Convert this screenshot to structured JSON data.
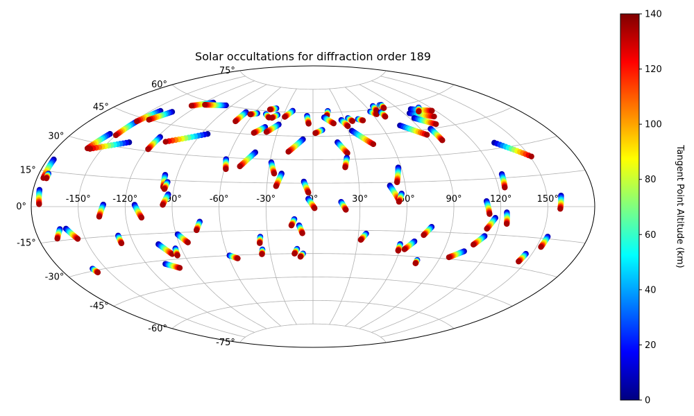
{
  "chart_data": {
    "type": "scatter",
    "projection": "aitoff",
    "title": "Solar occultations for diffraction order 189",
    "grid": true,
    "xlim": [
      -180,
      180
    ],
    "ylim": [
      -90,
      90
    ],
    "x_ticks": [
      -150,
      -120,
      -90,
      -60,
      -30,
      0,
      30,
      60,
      90,
      120,
      150
    ],
    "y_ticks": [
      -75,
      -60,
      -45,
      -30,
      -15,
      0,
      15,
      30,
      45,
      60,
      75
    ],
    "x_tick_labels": [
      "-150°",
      "-120°",
      "-90°",
      "-60°",
      "-30°",
      "0°",
      "30°",
      "60°",
      "90°",
      "120°",
      "150°"
    ],
    "y_tick_labels": [
      "-75°",
      "-60°",
      "-45°",
      "-30°",
      "-15°",
      "0°",
      "15°",
      "30°",
      "45°",
      "60°",
      "75°"
    ],
    "colorbar": {
      "label": "Tangent Point Altitude (km)",
      "colormap": "jet",
      "range": [
        0,
        140
      ],
      "ticks": [
        0,
        20,
        40,
        60,
        80,
        100,
        120,
        140
      ]
    },
    "series": [
      {
        "lon_start": -176,
        "lat_start": 20,
        "lon_end": -176,
        "lat_end": 12
      },
      {
        "lon_start": -176,
        "lat_start": 7,
        "lon_end": -175,
        "lat_end": 1
      },
      {
        "lon_start": -155,
        "lat_start": 35,
        "lon_end": -160,
        "lat_end": 27
      },
      {
        "lon_start": -148,
        "lat_start": 43,
        "lon_end": -150,
        "lat_end": 35
      },
      {
        "lon_start": -143,
        "lat_start": 50,
        "lon_end": -148,
        "lat_end": 43
      },
      {
        "lon_start": -136,
        "lat_start": 33,
        "lon_end": -158,
        "lat_end": 27
      },
      {
        "lon_start": -133,
        "lat_start": 51,
        "lon_end": -141,
        "lat_end": 45
      },
      {
        "lon_start": -112,
        "lat_start": 60,
        "lon_end": -126,
        "lat_end": 56
      },
      {
        "lon_start": -96,
        "lat_start": 60,
        "lon_end": -116,
        "lat_end": 58
      },
      {
        "lon_start": -118,
        "lat_start": 38,
        "lon_end": -119,
        "lat_end": 31
      },
      {
        "lon_start": -85,
        "lat_start": 43,
        "lon_end": -111,
        "lat_end": 36
      },
      {
        "lon_start": -98,
        "lat_start": 18,
        "lon_end": -97,
        "lat_end": 11
      },
      {
        "lon_start": -93,
        "lat_start": 7,
        "lon_end": -96,
        "lat_end": 1
      },
      {
        "lon_start": -134,
        "lat_start": 1,
        "lon_end": -137,
        "lat_end": -5
      },
      {
        "lon_start": -164,
        "lat_start": -10,
        "lon_end": -168,
        "lat_end": -14
      },
      {
        "lon_start": -160,
        "lat_start": -10,
        "lon_end": -155,
        "lat_end": -15
      },
      {
        "lon_start": -114,
        "lat_start": 1,
        "lon_end": -110,
        "lat_end": -6
      },
      {
        "lon_start": -128,
        "lat_start": -15,
        "lon_end": -128,
        "lat_end": -19
      },
      {
        "lon_start": -159,
        "lat_start": -29,
        "lon_end": -158,
        "lat_end": -31
      },
      {
        "lon_start": -104,
        "lat_start": -21,
        "lon_end": -98,
        "lat_end": -27
      },
      {
        "lon_start": -94,
        "lat_start": -24,
        "lon_end": -95,
        "lat_end": -28
      },
      {
        "lon_start": -107,
        "lat_start": -32,
        "lon_end": -99,
        "lat_end": -35
      },
      {
        "lon_start": -89,
        "lat_start": -16,
        "lon_end": -84,
        "lat_end": -21
      },
      {
        "lon_start": -73,
        "lat_start": -9,
        "lon_end": -76,
        "lat_end": -14
      },
      {
        "lon_start": -69,
        "lat_start": 58,
        "lon_end": -71,
        "lat_end": 52
      },
      {
        "lon_start": -61,
        "lat_start": 29,
        "lon_end": -59,
        "lat_end": 23
      },
      {
        "lon_start": -42,
        "lat_start": 34,
        "lon_end": -50,
        "lat_end": 25
      },
      {
        "lon_start": -42,
        "lat_start": 50,
        "lon_end": -49,
        "lat_end": 46
      },
      {
        "lon_start": -31,
        "lat_start": 52,
        "lon_end": -39,
        "lat_end": 47
      },
      {
        "lon_start": -57,
        "lat_start": 58,
        "lon_end": -63,
        "lat_end": 57
      },
      {
        "lon_start": -48,
        "lat_start": 58,
        "lon_end": -43,
        "lat_end": 56
      },
      {
        "lon_start": -36,
        "lat_start": 58,
        "lon_end": -40,
        "lat_end": 56
      },
      {
        "lon_start": -41,
        "lat_start": 62,
        "lon_end": -47,
        "lat_end": 61
      },
      {
        "lon_start": -22,
        "lat_start": 61,
        "lon_end": -28,
        "lat_end": 57
      },
      {
        "lon_start": -29,
        "lat_start": 28,
        "lon_end": -26,
        "lat_end": 21
      },
      {
        "lon_start": -21,
        "lat_start": 21,
        "lon_end": -24,
        "lat_end": 13
      },
      {
        "lon_start": -8,
        "lat_start": 43,
        "lon_end": -18,
        "lat_end": 35
      },
      {
        "lon_start": -6,
        "lat_start": 58,
        "lon_end": -4,
        "lat_end": 53
      },
      {
        "lon_start": -6,
        "lat_start": 16,
        "lon_end": -3,
        "lat_end": 9
      },
      {
        "lon_start": -3,
        "lat_start": 5,
        "lon_end": 1,
        "lat_end": -1
      },
      {
        "lon_start": -35,
        "lat_start": -19,
        "lon_end": -36,
        "lat_end": -23
      },
      {
        "lon_start": -35,
        "lat_start": -27,
        "lon_end": -36,
        "lat_end": -30
      },
      {
        "lon_start": -59,
        "lat_start": -30,
        "lon_end": -54,
        "lat_end": -32
      },
      {
        "lon_start": -11,
        "lat_start": -27,
        "lon_end": -13,
        "lat_end": -30
      },
      {
        "lon_start": -12,
        "lat_start": -8,
        "lon_end": -14,
        "lat_end": -12
      },
      {
        "lon_start": -9,
        "lat_start": -12,
        "lon_end": -7,
        "lat_end": -17
      },
      {
        "lon_start": -7,
        "lat_start": -30,
        "lon_end": -9,
        "lat_end": -32
      },
      {
        "lon_start": 8,
        "lat_start": 49,
        "lon_end": 2,
        "lat_end": 47
      },
      {
        "lon_start": 16,
        "lat_start": 61,
        "lon_end": 14,
        "lat_end": 58
      },
      {
        "lon_start": 11,
        "lat_start": 57,
        "lon_end": 19,
        "lat_end": 53
      },
      {
        "lon_start": 19,
        "lat_start": 41,
        "lon_end": 25,
        "lat_end": 34
      },
      {
        "lon_start": 24,
        "lat_start": 31,
        "lon_end": 22,
        "lat_end": 25
      },
      {
        "lon_start": 18,
        "lat_start": 3,
        "lon_end": 21,
        "lat_end": -2
      },
      {
        "lon_start": 27,
        "lat_start": 55,
        "lon_end": 31,
        "lat_end": 51
      },
      {
        "lon_start": 34,
        "lat_start": 56,
        "lon_end": 37,
        "lat_end": 54
      },
      {
        "lon_start": 43,
        "lat_start": 55,
        "lon_end": 47,
        "lat_end": 54
      },
      {
        "lon_start": 33,
        "lat_start": 48,
        "lon_end": 46,
        "lat_end": 39
      },
      {
        "lon_start": 35,
        "lat_start": -17,
        "lon_end": 32,
        "lat_end": -21
      },
      {
        "lon_start": 50,
        "lat_start": 13,
        "lon_end": 55,
        "lat_end": 4
      },
      {
        "lon_start": 58,
        "lat_start": 24,
        "lon_end": 55,
        "lat_end": 15
      },
      {
        "lon_start": 57,
        "lat_start": 8,
        "lon_end": 55,
        "lat_end": 3
      },
      {
        "lon_start": 60,
        "lat_start": 59,
        "lon_end": 64,
        "lat_end": 57
      },
      {
        "lon_start": 68,
        "lat_start": 62,
        "lon_end": 67,
        "lat_end": 59
      },
      {
        "lon_start": 70,
        "lat_start": 58,
        "lon_end": 70,
        "lat_end": 55
      },
      {
        "lon_start": 76,
        "lat_start": 62,
        "lon_end": 77,
        "lat_end": 61
      },
      {
        "lon_start": 78,
        "lat_start": 62,
        "lon_end": 77,
        "lat_end": 60
      },
      {
        "lon_start": 76,
        "lat_start": 49,
        "lon_end": 91,
        "lat_end": 42
      },
      {
        "lon_start": 95,
        "lat_start": 55,
        "lon_end": 112,
        "lat_end": 51
      },
      {
        "lon_start": 94,
        "lat_start": 52,
        "lon_end": 106,
        "lat_end": 47
      },
      {
        "lon_start": 101,
        "lat_start": 57,
        "lon_end": 117,
        "lat_end": 54
      },
      {
        "lon_start": 110,
        "lat_start": 57,
        "lon_end": 105,
        "lat_end": 55
      },
      {
        "lon_start": 98,
        "lat_start": 45,
        "lon_end": 99,
        "lat_end": 38
      },
      {
        "lon_start": 134,
        "lat_start": 33,
        "lon_end": 151,
        "lat_end": 24
      },
      {
        "lon_start": 125,
        "lat_start": 17,
        "lon_end": 124,
        "lat_end": 10
      },
      {
        "lon_start": 111,
        "lat_start": 3,
        "lon_end": 113,
        "lat_end": -4
      },
      {
        "lon_start": 124,
        "lat_start": -3,
        "lon_end": 125,
        "lat_end": -9
      },
      {
        "lon_start": 117,
        "lat_start": -6,
        "lon_end": 113,
        "lat_end": -12
      },
      {
        "lon_start": 113,
        "lat_start": -16,
        "lon_end": 108,
        "lat_end": -21
      },
      {
        "lon_start": 104,
        "lat_start": -25,
        "lon_end": 96,
        "lat_end": -29
      },
      {
        "lon_start": 77,
        "lat_start": -12,
        "lon_end": 73,
        "lat_end": -17
      },
      {
        "lon_start": 68,
        "lat_start": -21,
        "lon_end": 63,
        "lat_end": -26
      },
      {
        "lon_start": 59,
        "lat_start": -23,
        "lon_end": 59,
        "lat_end": -27
      },
      {
        "lon_start": 75,
        "lat_start": -32,
        "lon_end": 75,
        "lat_end": -34
      },
      {
        "lon_start": 159,
        "lat_start": 5,
        "lon_end": 158,
        "lat_end": -1
      },
      {
        "lon_start": 154,
        "lat_start": -14,
        "lon_end": 153,
        "lat_end": -19
      },
      {
        "lon_start": 146,
        "lat_start": -23,
        "lon_end": 145,
        "lat_end": -27
      },
      {
        "lon_start": -174,
        "lat_start": 14,
        "lon_end": -174,
        "lat_end": 12
      },
      {
        "lon_start": -95,
        "lat_start": 14,
        "lon_end": -96,
        "lat_end": 10
      }
    ]
  }
}
